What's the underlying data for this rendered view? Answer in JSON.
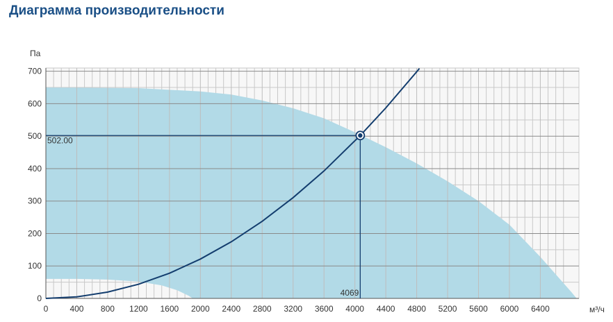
{
  "title": "Диаграмма производительности",
  "chart_data": {
    "type": "line",
    "xlim": [
      0,
      6900
    ],
    "ylim": [
      0,
      710
    ],
    "x_unit": "м³/ч",
    "y_unit": "Па",
    "grid": true,
    "x_ticks": [
      0,
      400,
      800,
      1200,
      1600,
      2000,
      2400,
      2800,
      3200,
      3600,
      4000,
      4400,
      4800,
      5200,
      5600,
      6000,
      6400
    ],
    "y_ticks": [
      0,
      100,
      200,
      300,
      400,
      500,
      600,
      700
    ],
    "operating_region": {
      "upper_boundary": [
        {
          "x": 0,
          "y": 650
        },
        {
          "x": 1200,
          "y": 648
        },
        {
          "x": 2000,
          "y": 638
        },
        {
          "x": 2400,
          "y": 628
        },
        {
          "x": 2800,
          "y": 610
        },
        {
          "x": 3200,
          "y": 586
        },
        {
          "x": 3600,
          "y": 555
        },
        {
          "x": 4000,
          "y": 512
        },
        {
          "x": 4400,
          "y": 466
        },
        {
          "x": 4800,
          "y": 416
        },
        {
          "x": 5200,
          "y": 361
        },
        {
          "x": 5600,
          "y": 300
        },
        {
          "x": 6000,
          "y": 227
        },
        {
          "x": 6400,
          "y": 128
        },
        {
          "x": 6800,
          "y": 20
        },
        {
          "x": 6870,
          "y": 0
        }
      ],
      "lower_boundary": [
        {
          "x": 0,
          "y": 60
        },
        {
          "x": 400,
          "y": 60
        },
        {
          "x": 800,
          "y": 58
        },
        {
          "x": 1200,
          "y": 52
        },
        {
          "x": 1500,
          "y": 40
        },
        {
          "x": 1700,
          "y": 25
        },
        {
          "x": 1850,
          "y": 8
        },
        {
          "x": 1900,
          "y": 0
        }
      ]
    },
    "system_curve": [
      {
        "x": 0,
        "y": 0
      },
      {
        "x": 400,
        "y": 4.8
      },
      {
        "x": 800,
        "y": 19.4
      },
      {
        "x": 1200,
        "y": 43.7
      },
      {
        "x": 1600,
        "y": 77.6
      },
      {
        "x": 2000,
        "y": 121.3
      },
      {
        "x": 2400,
        "y": 174.6
      },
      {
        "x": 2800,
        "y": 237.7
      },
      {
        "x": 3200,
        "y": 310.5
      },
      {
        "x": 3600,
        "y": 392.9
      },
      {
        "x": 4069,
        "y": 502
      },
      {
        "x": 4400,
        "y": 587.0
      },
      {
        "x": 4800,
        "y": 698.5
      },
      {
        "x": 4835,
        "y": 708.8
      }
    ],
    "operating_point": {
      "x": 4069,
      "y": 502,
      "x_label": "4069",
      "y_label": "502.00"
    },
    "colors": {
      "region": "#b2dae7",
      "curve": "#133d6e",
      "grid": "#c8c8c8",
      "plot_bg": "#f7f7f7",
      "title": "#1a4f86"
    }
  }
}
